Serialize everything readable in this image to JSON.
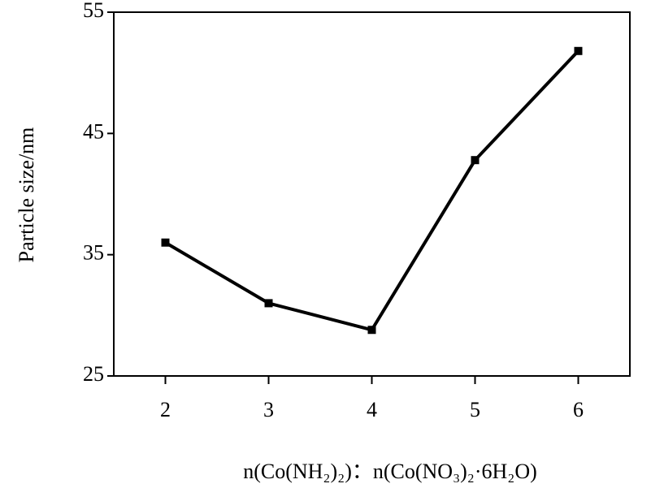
{
  "chart_data": {
    "type": "line",
    "x_label": "n(Co(NH₂)₂)：n(Co(NO₃)₂·6H₂O)",
    "y_label": "Particle size/nm",
    "x": [
      2,
      3,
      4,
      5,
      6
    ],
    "series": [
      {
        "color": "#000000",
        "values": [
          36,
          31,
          28.8,
          42.8,
          51.8
        ]
      }
    ],
    "xlim": [
      1.5,
      6.5
    ],
    "xticks": [
      2,
      3,
      4,
      5,
      6
    ],
    "ylim": [
      25,
      55
    ],
    "yticks": [
      25,
      35,
      45,
      55
    ]
  }
}
